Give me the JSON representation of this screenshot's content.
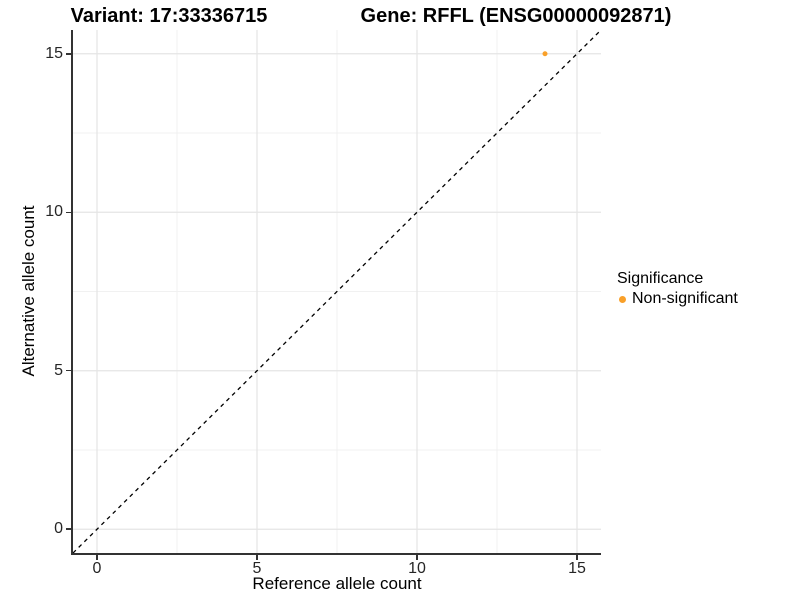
{
  "header": {
    "variant_title": "Variant: 17:33336715",
    "gene_title": "Gene: RFFL (ENSG00000092871)"
  },
  "axes": {
    "x": {
      "title": "Reference allele count"
    },
    "y": {
      "title": "Alternative allele count"
    }
  },
  "legend": {
    "title": "Significance",
    "items": [
      {
        "label": "Non-significant",
        "color": "#F9A029",
        "marker": "circle"
      }
    ]
  },
  "chart_data": {
    "type": "scatter",
    "title": "Variant: 17:33336715 / Gene: RFFL (ENSG00000092871)",
    "xlabel": "Reference allele count",
    "ylabel": "Alternative allele count",
    "xlim": [
      -0.75,
      15.75
    ],
    "ylim": [
      -0.75,
      15.75
    ],
    "x_major_ticks": [
      0,
      5,
      10,
      15
    ],
    "y_major_ticks": [
      0,
      5,
      10,
      15
    ],
    "x_minor_ticks": [
      2.5,
      7.5,
      12.5
    ],
    "y_minor_ticks": [
      2.5,
      7.5,
      12.5
    ],
    "grid": "major+minor",
    "legend_position": "right",
    "series": [
      {
        "name": "Non-significant",
        "color": "#F9A029",
        "points": [
          {
            "x": 14,
            "y": 15
          }
        ]
      }
    ],
    "reference_line": {
      "kind": "abline",
      "equation": "y = x",
      "style": "dashed",
      "color": "#000000"
    }
  },
  "style": {
    "background": "#FFFFFF",
    "grid_major_color": "#E4E4E4",
    "grid_minor_color": "#F1F1F1",
    "axis_line_color": "#333333",
    "point_color": "#F9A029"
  }
}
